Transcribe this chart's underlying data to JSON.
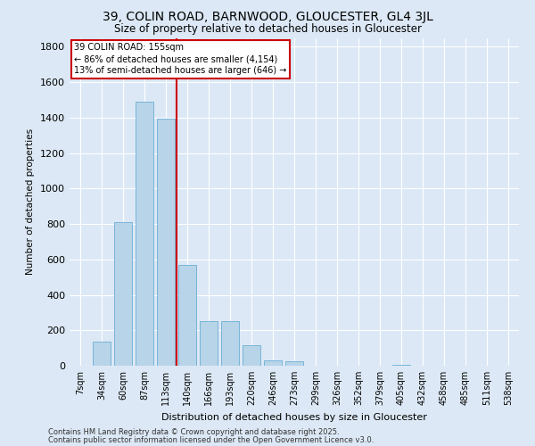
{
  "title_line1": "39, COLIN ROAD, BARNWOOD, GLOUCESTER, GL4 3JL",
  "title_line2": "Size of property relative to detached houses in Gloucester",
  "xlabel": "Distribution of detached houses by size in Gloucester",
  "ylabel": "Number of detached properties",
  "bar_labels": [
    "7sqm",
    "34sqm",
    "60sqm",
    "87sqm",
    "113sqm",
    "140sqm",
    "166sqm",
    "193sqm",
    "220sqm",
    "246sqm",
    "273sqm",
    "299sqm",
    "326sqm",
    "352sqm",
    "379sqm",
    "405sqm",
    "432sqm",
    "458sqm",
    "485sqm",
    "511sqm",
    "538sqm"
  ],
  "bar_values": [
    0,
    135,
    810,
    1490,
    1395,
    570,
    250,
    250,
    115,
    30,
    25,
    0,
    0,
    0,
    0,
    5,
    0,
    0,
    0,
    0,
    0
  ],
  "bar_color": "#b8d4e8",
  "bar_edge_color": "#6aaed6",
  "background_color": "#dce8f5",
  "grid_color": "#ffffff",
  "vline_color": "#cc0000",
  "vline_index": 5,
  "annotation_title": "39 COLIN ROAD: 155sqm",
  "annotation_line1": "← 86% of detached houses are smaller (4,154)",
  "annotation_line2": "13% of semi-detached houses are larger (646) →",
  "annotation_box_edgecolor": "#cc0000",
  "ylim": [
    0,
    1850
  ],
  "yticks": [
    0,
    200,
    400,
    600,
    800,
    1000,
    1200,
    1400,
    1600,
    1800
  ],
  "footnote_line1": "Contains HM Land Registry data © Crown copyright and database right 2025.",
  "footnote_line2": "Contains public sector information licensed under the Open Government Licence v3.0."
}
